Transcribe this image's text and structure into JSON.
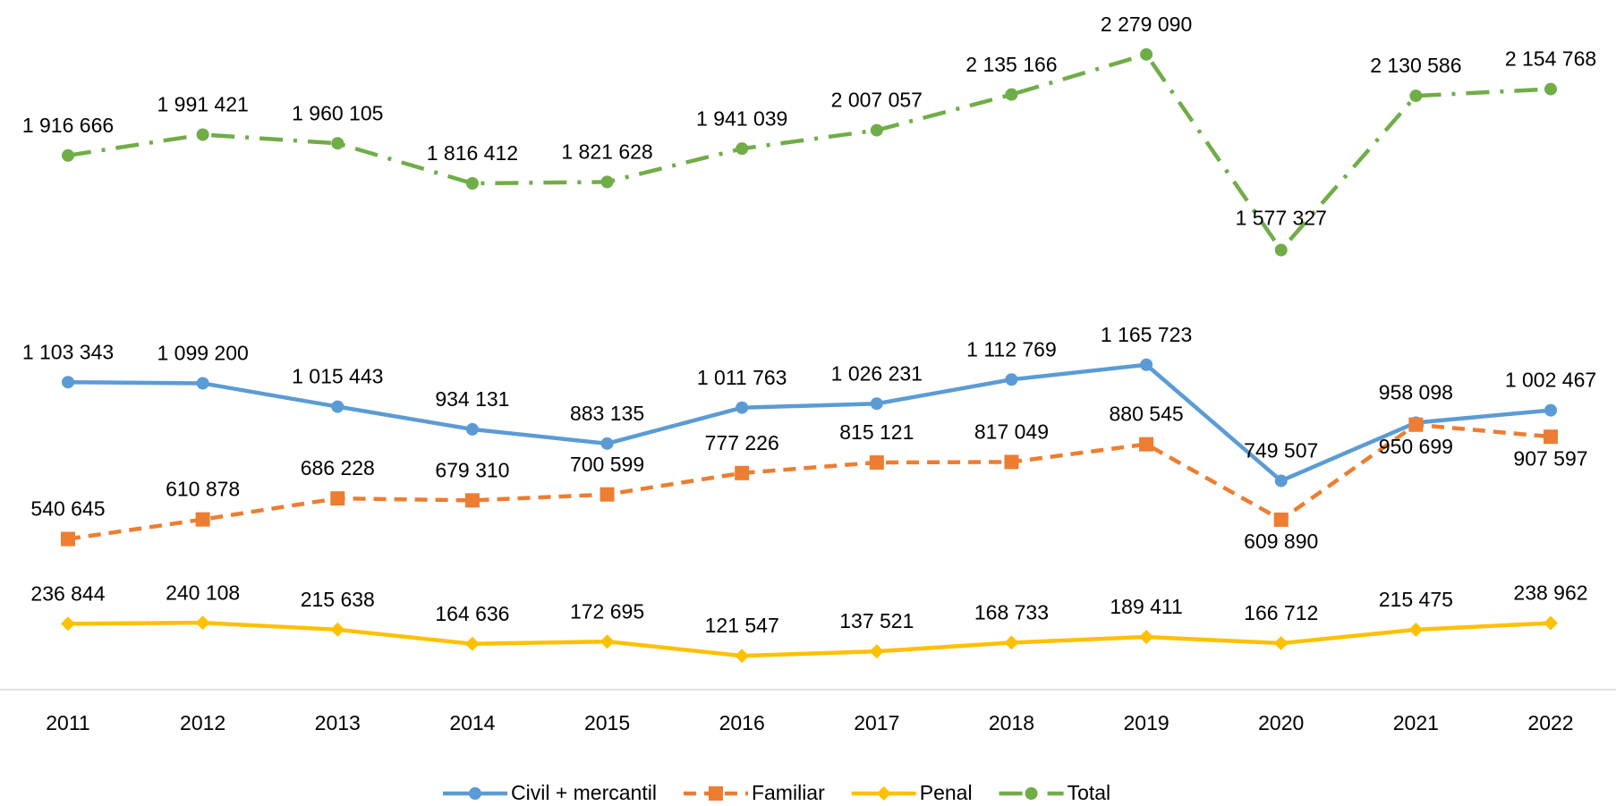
{
  "chart_data": {
    "type": "line",
    "categories": [
      "2011",
      "2012",
      "2013",
      "2014",
      "2015",
      "2016",
      "2017",
      "2018",
      "2019",
      "2020",
      "2021",
      "2022"
    ],
    "ylim": [
      0,
      2500000
    ],
    "legend": "bottom",
    "series": [
      {
        "name": "Civil + mercantil",
        "color": "#5b9bd5",
        "marker": "circle",
        "dash": "solid",
        "values": [
          1103343,
          1099200,
          1015443,
          934131,
          883135,
          1011763,
          1026231,
          1112769,
          1165723,
          749507,
          958098,
          1002467
        ],
        "value_labels": [
          "1 103 343",
          "1 099 200",
          "1 015 443",
          "934 131",
          "883 135",
          "1 011 763",
          "1 026 231",
          "1 112 769",
          "1 165 723",
          "749 507",
          "958 098",
          "1 002 467"
        ]
      },
      {
        "name": "Familiar",
        "color": "#ed7d31",
        "marker": "square",
        "dash": "dashed",
        "values": [
          540645,
          610878,
          686228,
          679310,
          700599,
          777226,
          815121,
          817049,
          880545,
          609890,
          950699,
          907597
        ],
        "value_labels": [
          "540 645",
          "610 878",
          "686 228",
          "679 310",
          "700 599",
          "777 226",
          "815 121",
          "817 049",
          "880 545",
          "609 890",
          "950 699",
          "907 597"
        ]
      },
      {
        "name": "Penal",
        "color": "#ffc000",
        "marker": "diamond",
        "dash": "solid",
        "values": [
          236844,
          240108,
          215638,
          164636,
          172695,
          121547,
          137521,
          168733,
          189411,
          166712,
          215475,
          238962
        ],
        "value_labels": [
          "236 844",
          "240 108",
          "215 638",
          "164 636",
          "172 695",
          "121 547",
          "137 521",
          "168 733",
          "189 411",
          "166 712",
          "215 475",
          "238 962"
        ]
      },
      {
        "name": "Total",
        "color": "#70ad47",
        "marker": "circle",
        "dash": "dashdot",
        "values": [
          1916666,
          1991421,
          1960105,
          1816412,
          1821628,
          1941039,
          2007057,
          2135166,
          2279090,
          1577327,
          2130586,
          2154768
        ],
        "value_labels": [
          "1 916 666",
          "1 991 421",
          "1 960 105",
          "1 816 412",
          "1 821 628",
          "1 941 039",
          "2 007 057",
          "2 135 166",
          "2 279 090",
          "1 577 327",
          "2 130 586",
          "2 154 768"
        ]
      }
    ]
  }
}
